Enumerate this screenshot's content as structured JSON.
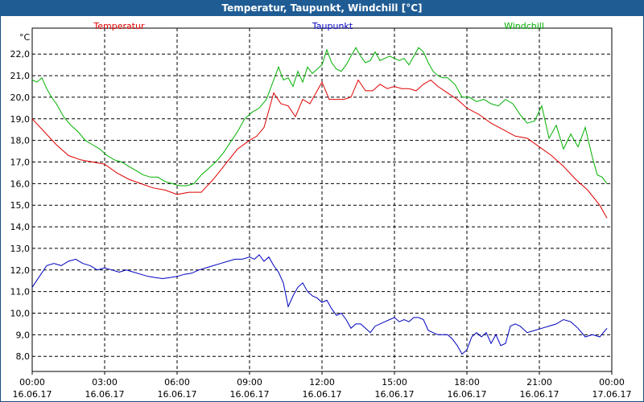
{
  "chart_data": {
    "type": "line",
    "title": "Temperatur, Taupunkt, Windchill [°C]",
    "ylabel": "°C",
    "xlabel": "",
    "ylim": [
      7.3,
      23.2
    ],
    "xlim": [
      0,
      24
    ],
    "grid": true,
    "legend_placement": "top",
    "yticks": [
      8,
      9,
      10,
      11,
      12,
      13,
      14,
      15,
      16,
      17,
      18,
      19,
      20,
      21,
      22
    ],
    "ytick_labels": [
      "8,0",
      "9,0",
      "10,0",
      "11,0",
      "12,0",
      "13,0",
      "14,0",
      "15,0",
      "16,0",
      "17,0",
      "18,0",
      "19,0",
      "20,0",
      "21,0",
      "22,0"
    ],
    "xticks": [
      0,
      3,
      6,
      9,
      12,
      15,
      18,
      21,
      24
    ],
    "xtick_times": [
      "00:00",
      "03:00",
      "06:00",
      "09:00",
      "12:00",
      "15:00",
      "18:00",
      "21:00",
      "00:00"
    ],
    "xtick_dates": [
      "16.06.17",
      "16.06.17",
      "16.06.17",
      "16.06.17",
      "16.06.17",
      "16.06.17",
      "16.06.17",
      "16.06.17",
      "17.06.17"
    ],
    "series": [
      {
        "name": "Temperatur",
        "color": "#e00000",
        "x": [
          0,
          0.5,
          1,
          1.5,
          2,
          2.5,
          3,
          3.5,
          4,
          4.5,
          5,
          5.5,
          6,
          6.5,
          7,
          7.5,
          8,
          8.5,
          9,
          9.3,
          9.6,
          10,
          10.3,
          10.6,
          10.9,
          11.2,
          11.5,
          11.8,
          12,
          12.3,
          12.6,
          12.9,
          13.2,
          13.5,
          13.8,
          14.1,
          14.4,
          14.7,
          15,
          15.3,
          15.6,
          15.9,
          16.2,
          16.5,
          16.8,
          17.2,
          17.6,
          18,
          18.5,
          19,
          19.5,
          20,
          20.5,
          21,
          21.5,
          22,
          22.5,
          23,
          23.5,
          23.8
        ],
        "values": [
          19.0,
          18.4,
          17.8,
          17.3,
          17.1,
          17.0,
          16.9,
          16.5,
          16.2,
          16.0,
          15.8,
          15.7,
          15.5,
          15.6,
          15.6,
          16.2,
          16.9,
          17.6,
          18.0,
          18.2,
          18.6,
          20.2,
          19.7,
          19.6,
          19.1,
          19.9,
          19.7,
          20.3,
          20.7,
          19.9,
          19.9,
          19.9,
          20.0,
          20.8,
          20.3,
          20.3,
          20.6,
          20.4,
          20.5,
          20.4,
          20.4,
          20.3,
          20.6,
          20.8,
          20.5,
          20.2,
          19.9,
          19.5,
          19.2,
          18.8,
          18.5,
          18.2,
          18.1,
          17.7,
          17.3,
          16.8,
          16.2,
          15.7,
          15.0,
          14.4
        ]
      },
      {
        "name": "Taupunkt",
        "color": "#0000c0",
        "x": [
          0,
          0.3,
          0.6,
          0.9,
          1.2,
          1.5,
          1.8,
          2.1,
          2.4,
          2.7,
          3.0,
          3.3,
          3.6,
          3.9,
          4.2,
          4.5,
          4.8,
          5.1,
          5.4,
          5.7,
          6.0,
          6.3,
          6.6,
          6.9,
          7.2,
          7.5,
          7.8,
          8.1,
          8.4,
          8.7,
          9.0,
          9.2,
          9.4,
          9.6,
          9.8,
          10.0,
          10.2,
          10.4,
          10.6,
          10.8,
          11.0,
          11.2,
          11.4,
          11.6,
          11.8,
          12.0,
          12.2,
          12.4,
          12.6,
          12.8,
          13.0,
          13.2,
          13.4,
          13.6,
          13.8,
          14.0,
          14.2,
          14.4,
          14.6,
          14.8,
          15.0,
          15.2,
          15.4,
          15.6,
          15.8,
          16.0,
          16.2,
          16.4,
          16.6,
          16.8,
          17.0,
          17.2,
          17.4,
          17.6,
          17.8,
          18.0,
          18.2,
          18.4,
          18.6,
          18.8,
          19.0,
          19.2,
          19.4,
          19.6,
          19.8,
          20.0,
          20.2,
          20.5,
          20.8,
          21.1,
          21.4,
          21.7,
          22.0,
          22.3,
          22.6,
          22.9,
          23.2,
          23.5,
          23.8
        ],
        "values": [
          11.2,
          11.7,
          12.2,
          12.3,
          12.2,
          12.4,
          12.5,
          12.3,
          12.2,
          12.0,
          12.1,
          12.0,
          11.9,
          12.0,
          11.9,
          11.8,
          11.7,
          11.65,
          11.6,
          11.65,
          11.7,
          11.8,
          11.85,
          12.0,
          12.1,
          12.2,
          12.3,
          12.4,
          12.5,
          12.5,
          12.6,
          12.5,
          12.7,
          12.4,
          12.6,
          12.2,
          11.9,
          11.4,
          10.3,
          10.8,
          11.2,
          11.4,
          11.0,
          10.8,
          10.7,
          10.5,
          10.6,
          10.2,
          9.9,
          10.0,
          9.7,
          9.3,
          9.5,
          9.5,
          9.3,
          9.1,
          9.4,
          9.5,
          9.6,
          9.7,
          9.8,
          9.6,
          9.7,
          9.6,
          9.8,
          9.8,
          9.7,
          9.2,
          9.1,
          9.0,
          9.0,
          9.0,
          8.8,
          8.5,
          8.1,
          8.3,
          8.9,
          9.1,
          8.9,
          9.1,
          8.6,
          9.0,
          8.5,
          8.6,
          9.4,
          9.5,
          9.4,
          9.1,
          9.2,
          9.3,
          9.4,
          9.5,
          9.7,
          9.6,
          9.3,
          8.9,
          9.0,
          8.9,
          9.3
        ]
      },
      {
        "name": "Windchill",
        "color": "#00b000",
        "x": [
          0,
          0.2,
          0.4,
          0.6,
          0.8,
          1.0,
          1.3,
          1.6,
          1.9,
          2.2,
          2.5,
          2.8,
          3.1,
          3.4,
          3.7,
          4.0,
          4.3,
          4.6,
          4.9,
          5.2,
          5.5,
          5.8,
          6.1,
          6.4,
          6.7,
          7.0,
          7.3,
          7.6,
          7.9,
          8.2,
          8.5,
          8.8,
          9.1,
          9.4,
          9.7,
          10.0,
          10.2,
          10.4,
          10.6,
          10.8,
          11.0,
          11.2,
          11.4,
          11.6,
          11.8,
          12.0,
          12.2,
          12.4,
          12.6,
          12.8,
          13.0,
          13.2,
          13.4,
          13.6,
          13.8,
          14.0,
          14.2,
          14.4,
          14.6,
          14.8,
          15.0,
          15.2,
          15.4,
          15.6,
          15.8,
          16.0,
          16.2,
          16.4,
          16.6,
          16.8,
          17.0,
          17.2,
          17.5,
          17.8,
          18.1,
          18.4,
          18.7,
          19.0,
          19.3,
          19.6,
          19.9,
          20.2,
          20.5,
          20.8,
          21.1,
          21.4,
          21.7,
          22.0,
          22.3,
          22.6,
          22.9,
          23.2,
          23.4,
          23.6,
          23.8
        ],
        "values": [
          20.8,
          20.7,
          20.9,
          20.4,
          20.0,
          19.7,
          19.1,
          18.7,
          18.4,
          18.0,
          17.8,
          17.6,
          17.3,
          17.1,
          17.0,
          16.8,
          16.6,
          16.4,
          16.3,
          16.3,
          16.1,
          16.0,
          15.9,
          15.9,
          16.0,
          16.4,
          16.7,
          17.0,
          17.4,
          17.9,
          18.4,
          19.0,
          19.3,
          19.5,
          19.9,
          20.8,
          21.4,
          20.8,
          20.9,
          20.5,
          21.2,
          20.7,
          21.4,
          21.1,
          21.3,
          21.5,
          22.2,
          21.6,
          21.3,
          21.2,
          21.5,
          21.9,
          22.3,
          21.9,
          21.6,
          21.7,
          22.1,
          21.7,
          21.8,
          21.9,
          21.8,
          21.7,
          21.8,
          21.5,
          21.9,
          22.3,
          22.1,
          21.6,
          21.2,
          21.0,
          20.9,
          20.9,
          20.6,
          20.0,
          20.0,
          19.8,
          19.9,
          19.7,
          19.6,
          19.9,
          19.7,
          19.2,
          18.8,
          18.9,
          19.6,
          18.1,
          18.7,
          17.6,
          18.3,
          17.7,
          18.6,
          17.2,
          16.4,
          16.3,
          16.0
        ]
      }
    ]
  }
}
